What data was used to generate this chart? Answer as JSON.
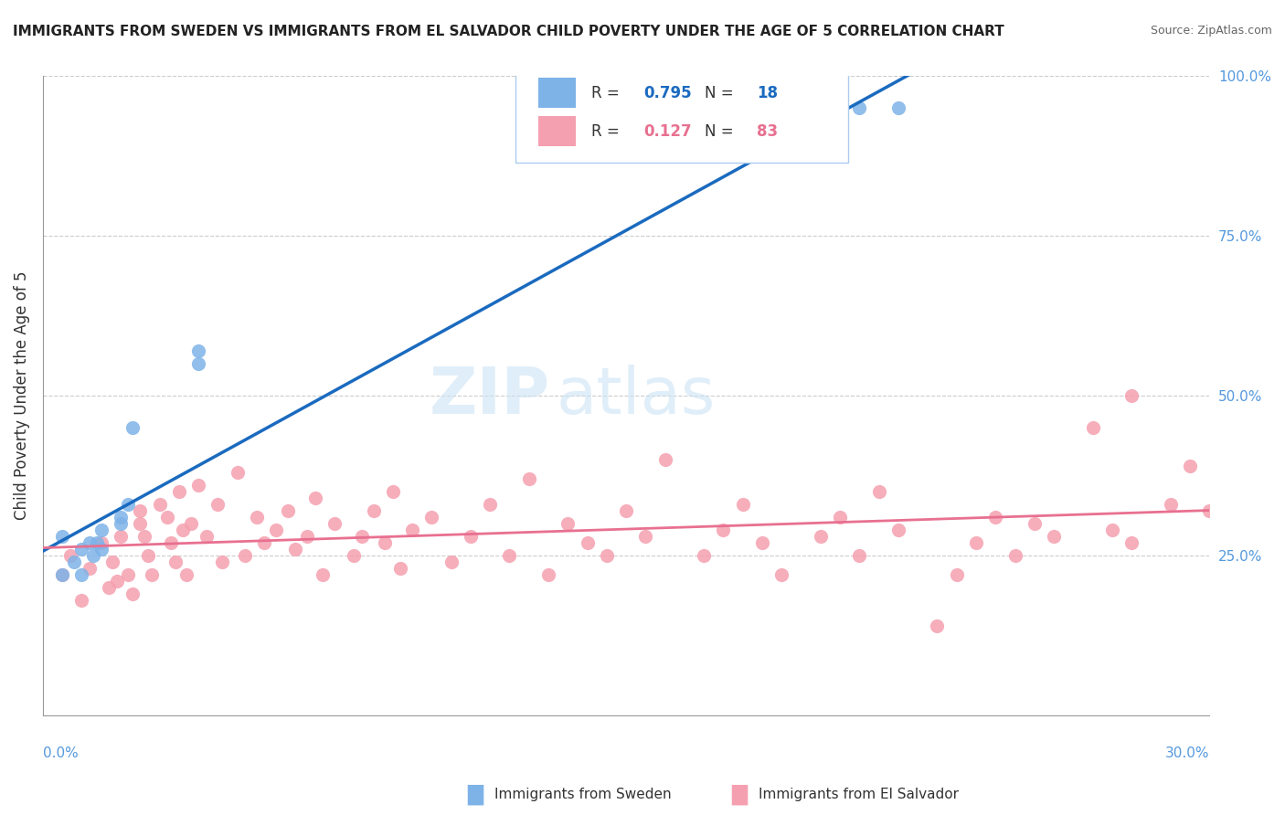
{
  "title": "IMMIGRANTS FROM SWEDEN VS IMMIGRANTS FROM EL SALVADOR CHILD POVERTY UNDER THE AGE OF 5 CORRELATION CHART",
  "source": "Source: ZipAtlas.com",
  "ylabel": "Child Poverty Under the Age of 5",
  "watermark_zip": "ZIP",
  "watermark_atlas": "atlas",
  "xlim": [
    0.0,
    0.3
  ],
  "ylim": [
    0.0,
    1.0
  ],
  "sweden_R": 0.795,
  "sweden_N": 18,
  "salvador_R": 0.127,
  "salvador_N": 83,
  "sweden_color": "#7eb3e8",
  "salvador_color": "#f5a0b0",
  "sweden_line_color": "#1a6abf",
  "salvador_line_color": "#e87090",
  "sweden_scatter_x": [
    0.01,
    0.01,
    0.005,
    0.005,
    0.008,
    0.012,
    0.013,
    0.015,
    0.015,
    0.014,
    0.02,
    0.02,
    0.022,
    0.023,
    0.04,
    0.04,
    0.21,
    0.22
  ],
  "sweden_scatter_y": [
    0.22,
    0.26,
    0.28,
    0.22,
    0.24,
    0.27,
    0.25,
    0.26,
    0.29,
    0.27,
    0.3,
    0.31,
    0.33,
    0.45,
    0.55,
    0.57,
    0.95,
    0.95
  ],
  "salvador_scatter_x": [
    0.005,
    0.007,
    0.01,
    0.012,
    0.015,
    0.017,
    0.018,
    0.019,
    0.02,
    0.022,
    0.023,
    0.025,
    0.025,
    0.026,
    0.027,
    0.028,
    0.03,
    0.032,
    0.033,
    0.034,
    0.035,
    0.036,
    0.037,
    0.038,
    0.04,
    0.042,
    0.045,
    0.046,
    0.05,
    0.052,
    0.055,
    0.057,
    0.06,
    0.063,
    0.065,
    0.068,
    0.07,
    0.072,
    0.075,
    0.08,
    0.082,
    0.085,
    0.088,
    0.09,
    0.092,
    0.095,
    0.1,
    0.105,
    0.11,
    0.115,
    0.12,
    0.125,
    0.13,
    0.135,
    0.14,
    0.145,
    0.15,
    0.155,
    0.16,
    0.17,
    0.175,
    0.18,
    0.185,
    0.19,
    0.2,
    0.205,
    0.21,
    0.215,
    0.22,
    0.23,
    0.235,
    0.24,
    0.245,
    0.25,
    0.255,
    0.26,
    0.27,
    0.275,
    0.28,
    0.29,
    0.295,
    0.3,
    0.28
  ],
  "salvador_scatter_y": [
    0.22,
    0.25,
    0.18,
    0.23,
    0.27,
    0.2,
    0.24,
    0.21,
    0.28,
    0.22,
    0.19,
    0.3,
    0.32,
    0.28,
    0.25,
    0.22,
    0.33,
    0.31,
    0.27,
    0.24,
    0.35,
    0.29,
    0.22,
    0.3,
    0.36,
    0.28,
    0.33,
    0.24,
    0.38,
    0.25,
    0.31,
    0.27,
    0.29,
    0.32,
    0.26,
    0.28,
    0.34,
    0.22,
    0.3,
    0.25,
    0.28,
    0.32,
    0.27,
    0.35,
    0.23,
    0.29,
    0.31,
    0.24,
    0.28,
    0.33,
    0.25,
    0.37,
    0.22,
    0.3,
    0.27,
    0.25,
    0.32,
    0.28,
    0.4,
    0.25,
    0.29,
    0.33,
    0.27,
    0.22,
    0.28,
    0.31,
    0.25,
    0.35,
    0.29,
    0.14,
    0.22,
    0.27,
    0.31,
    0.25,
    0.3,
    0.28,
    0.45,
    0.29,
    0.27,
    0.33,
    0.39,
    0.32,
    0.5
  ]
}
